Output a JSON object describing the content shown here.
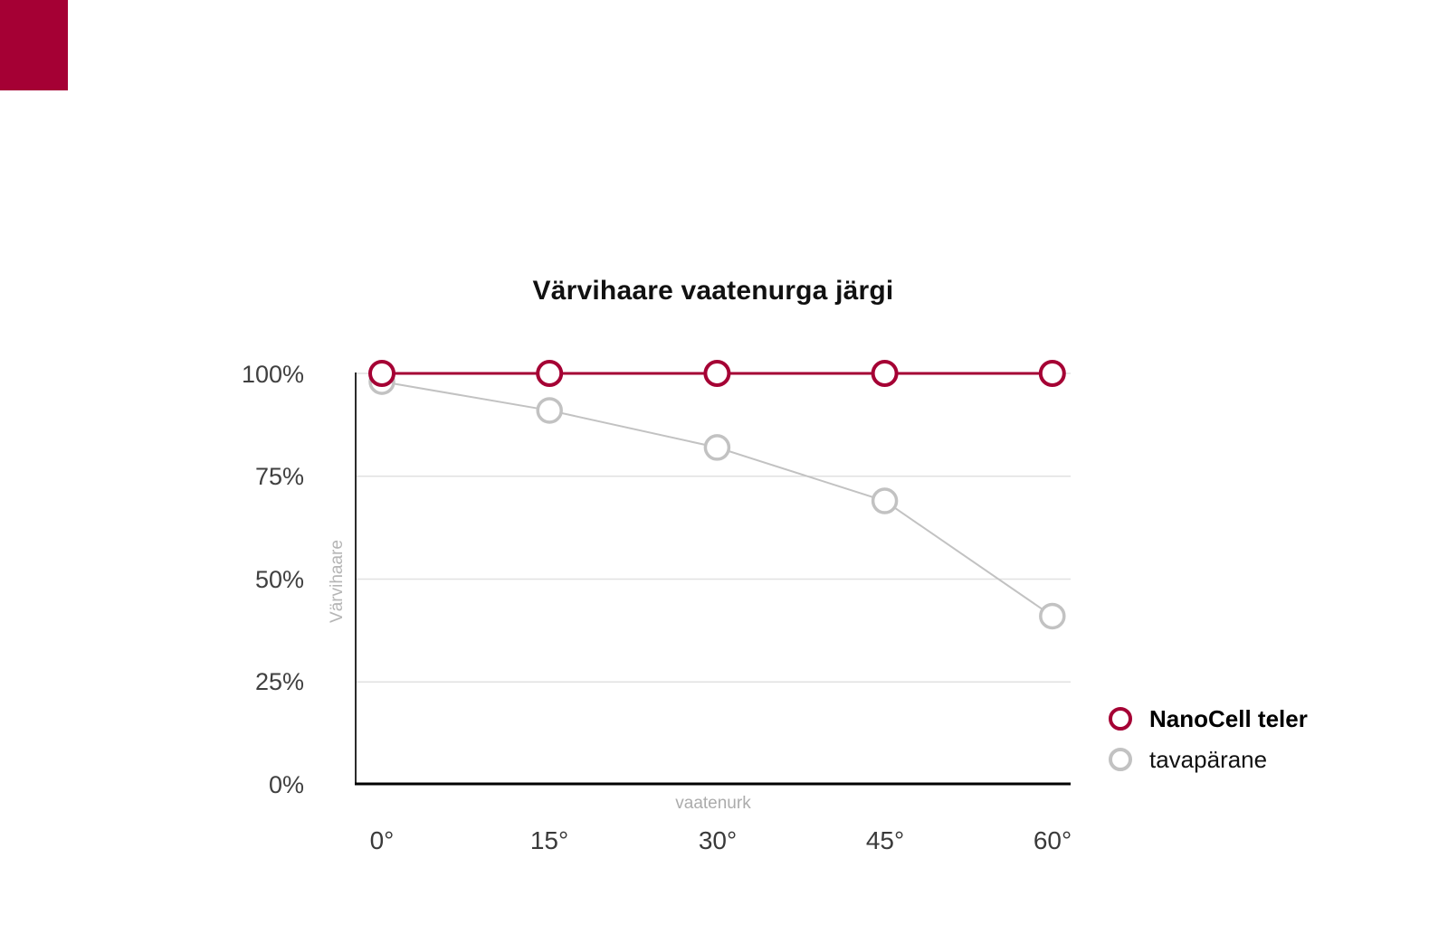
{
  "corner_marker": {
    "color": "#A50034"
  },
  "chart_data": {
    "type": "line",
    "title": "Värvihaare vaatenurga järgi",
    "xlabel": "vaatenurk",
    "ylabel": "Värvihaare",
    "categories": [
      "0°",
      "15°",
      "30°",
      "45°",
      "60°"
    ],
    "series": [
      {
        "name": "NanoCell teler",
        "values": [
          100,
          100,
          100,
          100,
          100
        ],
        "color": "#A50034",
        "line_width": 3,
        "marker": "open-circle",
        "legend_bold": true
      },
      {
        "name": "tavapärane",
        "values": [
          98,
          91,
          82,
          69,
          41
        ],
        "color": "#C2C2C2",
        "line_width": 2,
        "marker": "open-circle",
        "legend_bold": false
      }
    ],
    "ytick_labels": [
      "100%",
      "75%",
      "50%",
      "25%",
      "0%"
    ],
    "ytick_values": [
      100,
      75,
      50,
      25,
      0
    ],
    "ylim": [
      0,
      100
    ],
    "grid": "horizontal",
    "gridline_color": "#E1E1E1",
    "axis_color": "#000000",
    "legend_position": "right-bottom"
  }
}
